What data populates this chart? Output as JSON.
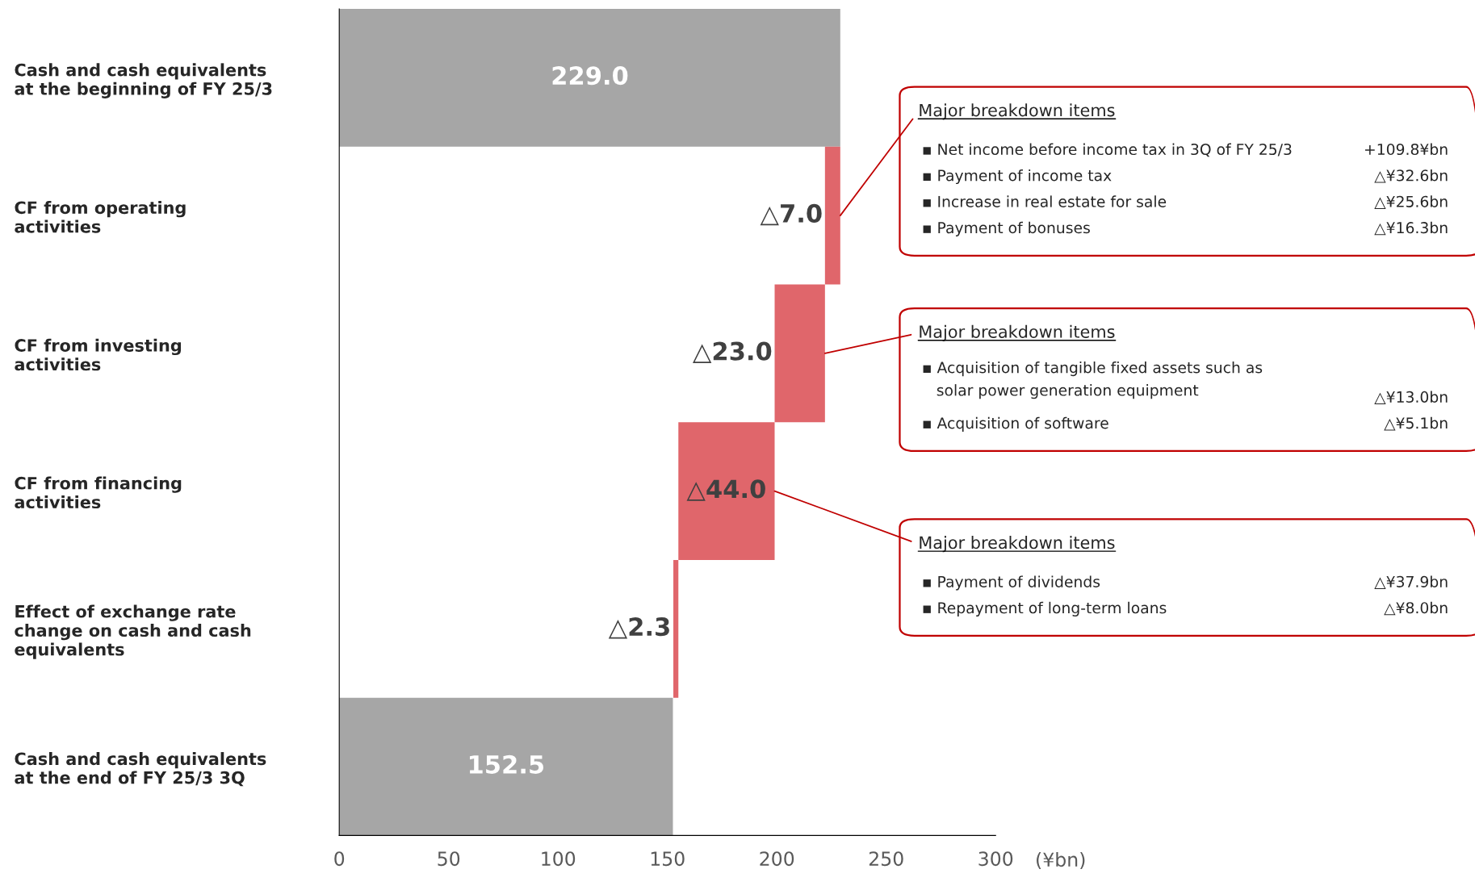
{
  "chart_data": {
    "type": "bar",
    "orientation": "horizontal",
    "categories": [
      "Cash and cash equivalents\nat the beginning of FY 25/3",
      "CF from operating\nactivities",
      "CF from investing\nactivities",
      "CF from financing\nactivities",
      "Effect of exchange rate\nchange on cash and cash\nequivalents",
      "Cash and cash equivalents\nat the end of FY 25/3 3Q"
    ],
    "values": [
      229.0,
      -7.0,
      -23.0,
      -44.0,
      -2.3,
      152.5
    ],
    "base": [
      0,
      229.0,
      222.0,
      199.0,
      155.0,
      0
    ],
    "colors": [
      "#a6a6a6",
      "#e0666b",
      "#e0666b",
      "#e0666b",
      "#e0666b",
      "#a6a6a6"
    ],
    "value_labels": [
      "229.0",
      "△7.0",
      "△23.0",
      "△44.0",
      "△2.3",
      "152.5"
    ],
    "xlim": [
      0,
      300
    ],
    "xticks": [
      0,
      50,
      100,
      150,
      200,
      250,
      300
    ],
    "xlabel": "(¥bn)",
    "grid": false,
    "legend": false,
    "annotations": [
      {
        "text": "Major breakdown items",
        "x": 229.0,
        "y": "CF from operating\nactivities"
      },
      "▪ Net income before income tax in 3Q of FY 25/3",
      "+109.8¥bn",
      "▪ Payment of income tax",
      "△¥32.6bn",
      "▪ Increase in real estate for sale",
      "△¥25.6bn",
      "▪ Payment of bonuses",
      "△¥16.3bn",
      {
        "text": "Major breakdown items",
        "x": 222.0,
        "y": "CF from investing\nactivities"
      },
      "▪ Acquisition of tangible fixed assets such as\n   solar power generation equipment",
      "△¥13.0bn",
      "▪ Acquisition of software",
      "△¥5.1bn",
      {
        "text": "Major breakdown items",
        "x": 199.0,
        "y": "CF from financing\nactivities"
      },
      "▪ Payment of dividends",
      "△¥37.9bn",
      "▪ Repayment of long-term loans",
      "△¥8.0bn"
    ]
  }
}
